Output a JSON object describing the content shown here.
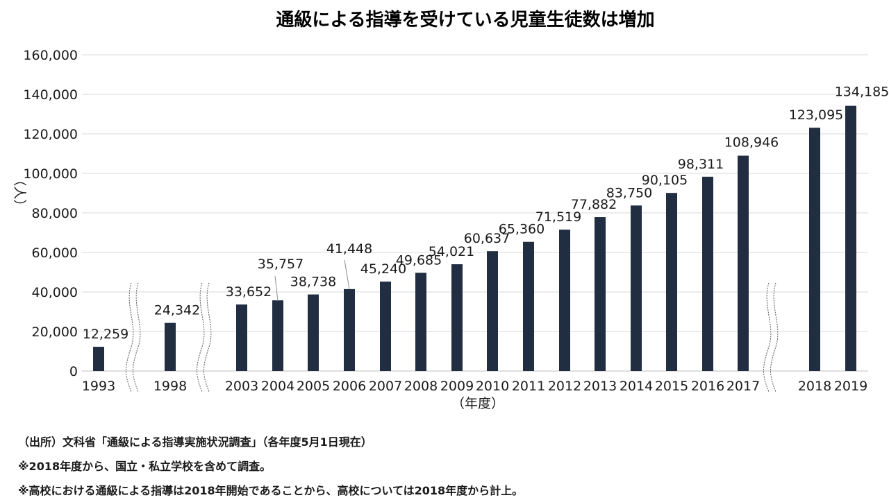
{
  "chart_data": {
    "type": "bar",
    "title": "通級による指導を受けている児童生徒数は増加",
    "ylabel": "（人）",
    "xlabel": "（年度）",
    "ylim": [
      0,
      160000
    ],
    "yticks": [
      0,
      20000,
      40000,
      60000,
      80000,
      100000,
      120000,
      140000,
      160000
    ],
    "ytick_labels": [
      "0",
      "20,000",
      "40,000",
      "60,000",
      "80,000",
      "100,000",
      "120,000",
      "140,000",
      "160,000"
    ],
    "categories": [
      "1993",
      "1998",
      "2003",
      "2004",
      "2005",
      "2006",
      "2007",
      "2008",
      "2009",
      "2010",
      "2011",
      "2012",
      "2013",
      "2014",
      "2015",
      "2016",
      "2017",
      "2018",
      "2019"
    ],
    "values": [
      12259,
      24342,
      33652,
      35757,
      38738,
      41448,
      45240,
      49685,
      54021,
      60637,
      65360,
      71519,
      77882,
      83750,
      90105,
      98311,
      108946,
      123095,
      134185
    ],
    "value_labels": [
      "12,259",
      "24,342",
      "33,652",
      "35,757",
      "38,738",
      "41,448",
      "45,240",
      "49,685",
      "54,021",
      "60,637",
      "65,360",
      "71,519",
      "77,882",
      "83,750",
      "90,105",
      "98,311",
      "108,946",
      "123,095",
      "134,185"
    ],
    "bar_color": "#212e42",
    "grid": true,
    "axis_breaks": [
      "1993-1998",
      "1998-2003",
      "2017-2018"
    ]
  },
  "notes": [
    "（出所）文科省「通級による指導実施状況調査」（各年度5月1日現在）",
    "※2018年度から、国立・私立学校を含めて調査。",
    "※高校における通級による指導は2018年開始であることから、高校については2018年度から計上。"
  ]
}
